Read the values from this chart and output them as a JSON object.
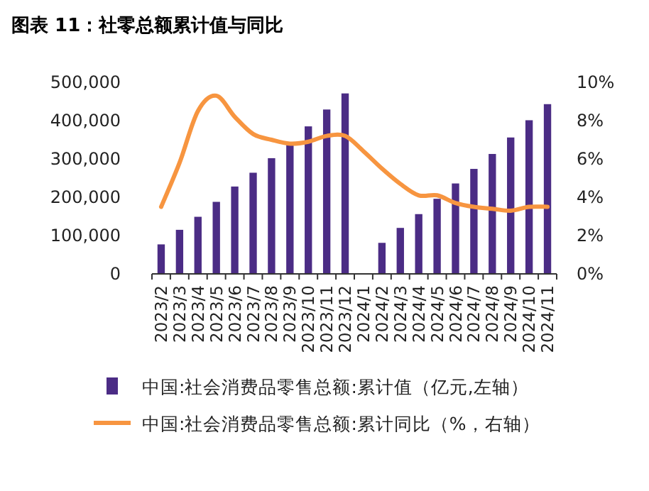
{
  "chart_data": {
    "type": "bar",
    "title": "图表 11：社零总额累计值与同比",
    "categories": [
      "2023/2",
      "2023/3",
      "2023/4",
      "2023/5",
      "2023/6",
      "2023/7",
      "2023/8",
      "2023/9",
      "2023/10",
      "2023/11",
      "2023/12",
      "2024/1",
      "2024/2",
      "2024/3",
      "2024/4",
      "2024/5",
      "2024/6",
      "2024/7",
      "2024/8",
      "2024/9",
      "2024/10",
      "2024/11"
    ],
    "series": [
      {
        "name": "中国:社会消费品零售总额:累计值（亿元,左轴）",
        "color": "#4b2c85",
        "values": [
          77000,
          115000,
          149000,
          188000,
          228000,
          264000,
          302000,
          342000,
          385000,
          429000,
          471000,
          null,
          81000,
          120000,
          156000,
          196000,
          236000,
          274000,
          313000,
          356000,
          401000,
          443000
        ]
      },
      {
        "name": "中国:社会消费品零售总额:累计同比（%，右轴）",
        "type": "line",
        "axis": "y2",
        "color": "#f79540",
        "values": [
          3.5,
          5.8,
          8.5,
          9.3,
          8.2,
          7.3,
          7.0,
          6.8,
          6.9,
          7.2,
          7.2,
          6.4,
          5.5,
          4.7,
          4.1,
          4.1,
          3.7,
          3.5,
          3.4,
          3.3,
          3.5,
          3.5
        ]
      }
    ],
    "ylim": [
      0,
      500000
    ],
    "yticks": [
      0,
      {
        "value": 100000,
        "label": "100,000"
      },
      {
        "value": 200000,
        "label": "200,000"
      },
      {
        "value": 300000,
        "label": "300,000"
      },
      {
        "value": 400000,
        "label": "400,000"
      },
      {
        "value": 500000,
        "label": "500,000"
      }
    ],
    "y2lim": [
      0,
      10
    ],
    "y2ticks": [
      {
        "value": 0,
        "label": "0%"
      },
      {
        "value": 2,
        "label": "2%"
      },
      {
        "value": 4,
        "label": "4%"
      },
      {
        "value": 6,
        "label": "6%"
      },
      {
        "value": 8,
        "label": "8%"
      },
      {
        "value": 10,
        "label": "10%"
      }
    ],
    "grid": false,
    "legend": "bottom"
  }
}
